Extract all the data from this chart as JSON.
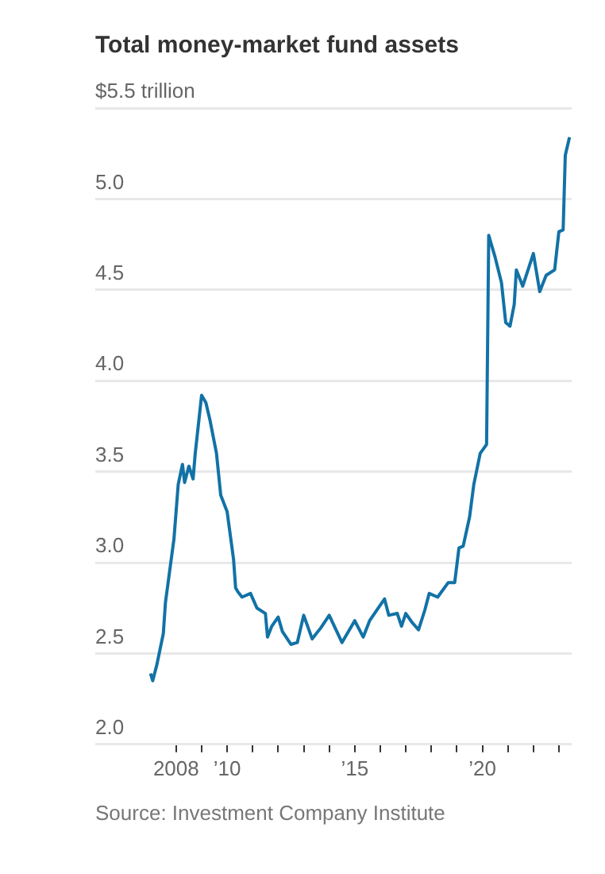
{
  "chart_data": {
    "type": "line",
    "title": "Total money-market fund assets",
    "x": [
      "2007-01",
      "2007-02",
      "2007-04",
      "2007-07",
      "2007-08",
      "2007-12",
      "2008-02",
      "2008-04",
      "2008-05",
      "2008-07",
      "2008-09",
      "2008-10",
      "2009-01",
      "2009-03",
      "2009-05",
      "2009-08",
      "2009-10",
      "2010-01",
      "2010-04",
      "2010-05",
      "2010-06",
      "2010-08",
      "2010-12",
      "2011-03",
      "2011-07",
      "2011-08",
      "2011-10",
      "2012-01",
      "2012-03",
      "2012-07",
      "2012-10",
      "2013-01",
      "2013-05",
      "2013-09",
      "2014-01",
      "2014-07",
      "2015-01",
      "2015-05",
      "2015-08",
      "2016-03",
      "2016-05",
      "2016-09",
      "2016-11",
      "2017-01",
      "2017-04",
      "2017-07",
      "2017-10",
      "2017-12",
      "2018-04",
      "2018-09",
      "2018-12",
      "2019-02",
      "2019-04",
      "2019-07",
      "2019-09",
      "2019-12",
      "2020-03",
      "2020-04",
      "2020-07",
      "2020-10",
      "2020-12",
      "2021-02",
      "2021-04",
      "2021-05",
      "2021-08",
      "2022-01",
      "2022-04",
      "2022-07",
      "2022-11",
      "2023-01",
      "2023-03",
      "2023-04",
      "2023-06"
    ],
    "series": [
      {
        "color": "#1272a6",
        "values": [
          2.39,
          2.35,
          2.44,
          2.61,
          2.78,
          3.13,
          3.43,
          3.54,
          3.44,
          3.53,
          3.46,
          3.6,
          3.92,
          3.88,
          3.78,
          3.6,
          3.37,
          3.28,
          3.02,
          2.86,
          2.84,
          2.81,
          2.83,
          2.75,
          2.72,
          2.59,
          2.65,
          2.7,
          2.62,
          2.55,
          2.56,
          2.71,
          2.58,
          2.64,
          2.71,
          2.56,
          2.68,
          2.59,
          2.68,
          2.8,
          2.71,
          2.72,
          2.65,
          2.72,
          2.67,
          2.63,
          2.74,
          2.83,
          2.81,
          2.89,
          2.89,
          3.08,
          3.09,
          3.25,
          3.43,
          3.6,
          3.65,
          4.8,
          4.68,
          4.54,
          4.32,
          4.3,
          4.42,
          4.61,
          4.52,
          4.7,
          4.49,
          4.58,
          4.61,
          4.82,
          4.83,
          5.24,
          5.34
        ]
      }
    ],
    "xlim": [
      "2004-11",
      "2023-07"
    ],
    "xticks": [
      {
        "value": "2008",
        "label": "2008"
      },
      {
        "value": "2009",
        "label": null
      },
      {
        "value": "2010",
        "label": "’10"
      },
      {
        "value": "2011",
        "label": null
      },
      {
        "value": "2012",
        "label": null
      },
      {
        "value": "2013",
        "label": null
      },
      {
        "value": "2014",
        "label": null
      },
      {
        "value": "2015",
        "label": "’15"
      },
      {
        "value": "2016",
        "label": null
      },
      {
        "value": "2017",
        "label": null
      },
      {
        "value": "2018",
        "label": null
      },
      {
        "value": "2019",
        "label": null
      },
      {
        "value": "2020",
        "label": "’20"
      },
      {
        "value": "2021",
        "label": null
      },
      {
        "value": "2022",
        "label": null
      },
      {
        "value": "2023",
        "label": null
      }
    ],
    "ylim": [
      2,
      5.5
    ],
    "yticks": [
      {
        "value": 2,
        "label": "2.0"
      },
      2.5,
      {
        "value": 3,
        "label": "3.0"
      },
      3.5,
      {
        "value": 4,
        "label": "4.0"
      },
      4.5,
      {
        "value": 5,
        "label": "5.0"
      },
      {
        "value": 5.5,
        "label": "$5.5 trillion"
      }
    ],
    "grid": "y",
    "legend": false,
    "marker": "none",
    "line_style": "solid",
    "annotations": [
      "Source: Investment Company Institute"
    ]
  }
}
